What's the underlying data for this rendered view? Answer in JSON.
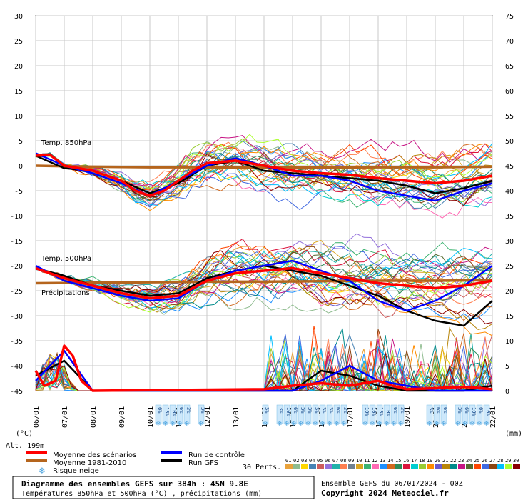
{
  "chart_data": {
    "type": "line",
    "title": "Diagramme des ensembles GEFS sur 384h : 45N 9.8E",
    "subtitle": "Températures 850hPa et 500hPa (°C) , précipitations (mm)",
    "x_ticks": [
      "06/01",
      "07/01",
      "08/01",
      "09/01",
      "10/01",
      "11/01",
      "12/01",
      "13/01",
      "14/01",
      "15/01",
      "16/01",
      "17/01",
      "18/01",
      "19/01",
      "20/01",
      "21/01",
      "22/01"
    ],
    "y_left_ticks": [
      30,
      25,
      20,
      15,
      10,
      5,
      0,
      -5,
      -10,
      -15,
      -20,
      -25,
      -30,
      -35,
      -40,
      -45
    ],
    "y_right_ticks": [
      75,
      70,
      65,
      60,
      55,
      50,
      45,
      40,
      35,
      30,
      25,
      20,
      15,
      10,
      5,
      0
    ],
    "ylim_left": [
      -45,
      30
    ],
    "ylim_right": [
      0,
      75
    ],
    "ylabel_left": "(°C)",
    "ylabel_right": "(mm)",
    "alt_label": "Alt. 199m",
    "annotations": [
      "Temp. 850hPa",
      "Temp. 500hPa",
      "Précipitations"
    ],
    "snow_labels": [
      {
        "day": 4.3,
        "label": "6%"
      },
      {
        "day": 4.55,
        "label": "13%"
      },
      {
        "day": 4.8,
        "label": "10%"
      },
      {
        "day": 5.05,
        "label": "6%"
      },
      {
        "day": 5.3,
        "label": "3%"
      },
      {
        "day": 5.8,
        "label": "3%"
      },
      {
        "day": 8.05,
        "label": "3%"
      },
      {
        "day": 8.55,
        "label": "3%"
      },
      {
        "day": 8.8,
        "label": "10%"
      },
      {
        "day": 9.05,
        "label": "6%"
      },
      {
        "day": 9.3,
        "label": "3%"
      },
      {
        "day": 9.55,
        "label": "3%"
      },
      {
        "day": 9.8,
        "label": "3%"
      },
      {
        "day": 10.05,
        "label": "3%"
      },
      {
        "day": 10.3,
        "label": "3%"
      },
      {
        "day": 10.55,
        "label": "6%"
      },
      {
        "day": 10.8,
        "label": "3%"
      },
      {
        "day": 11.55,
        "label": "10%"
      },
      {
        "day": 11.8,
        "label": "10%"
      },
      {
        "day": 12.05,
        "label": "13%"
      },
      {
        "day": 12.3,
        "label": "10%"
      },
      {
        "day": 12.55,
        "label": "6%"
      },
      {
        "day": 12.8,
        "label": "3%"
      },
      {
        "day": 13.8,
        "label": "3%"
      },
      {
        "day": 14.05,
        "label": "6%"
      },
      {
        "day": 14.3,
        "label": "6%"
      },
      {
        "day": 14.8,
        "label": "3%"
      },
      {
        "day": 15.05,
        "label": "6%"
      },
      {
        "day": 15.3,
        "label": "10%"
      },
      {
        "day": 15.55,
        "label": "6%"
      },
      {
        "day": 15.8,
        "label": "10%"
      }
    ],
    "series": [
      {
        "name": "Moyenne des scénarios",
        "color": "#ff0000",
        "t850": [
          [
            0,
            2
          ],
          [
            0.5,
            2.2
          ],
          [
            1,
            0
          ],
          [
            2,
            -1
          ],
          [
            3,
            -3
          ],
          [
            3.5,
            -5
          ],
          [
            4,
            -6
          ],
          [
            4.5,
            -5
          ],
          [
            5,
            -3
          ],
          [
            5.5,
            -1
          ],
          [
            6,
            0.5
          ],
          [
            7,
            1
          ],
          [
            8,
            0
          ],
          [
            9,
            -1
          ],
          [
            10,
            -1.5
          ],
          [
            11,
            -1.8
          ],
          [
            12,
            -2.5
          ],
          [
            13,
            -3
          ],
          [
            14,
            -3.5
          ],
          [
            15,
            -3
          ],
          [
            16,
            -2
          ]
        ],
        "t500": [
          [
            0,
            -20.5
          ],
          [
            1,
            -22.5
          ],
          [
            2,
            -24
          ],
          [
            3,
            -25.5
          ],
          [
            4,
            -26.5
          ],
          [
            5,
            -26
          ],
          [
            6,
            -23
          ],
          [
            7,
            -21.5
          ],
          [
            8,
            -21
          ],
          [
            9,
            -20.5
          ],
          [
            10,
            -21.5
          ],
          [
            11,
            -22.5
          ],
          [
            12,
            -23.5
          ],
          [
            13,
            -24
          ],
          [
            14,
            -24.5
          ],
          [
            15,
            -24
          ],
          [
            16,
            -23
          ]
        ],
        "precip": [
          [
            0,
            4
          ],
          [
            0.3,
            1
          ],
          [
            0.7,
            2
          ],
          [
            1,
            9
          ],
          [
            1.3,
            7
          ],
          [
            1.6,
            2
          ],
          [
            2,
            0
          ],
          [
            8,
            0.3
          ],
          [
            9,
            1
          ],
          [
            10,
            1.5
          ],
          [
            11,
            1
          ],
          [
            12,
            2
          ],
          [
            12.5,
            1
          ],
          [
            13,
            0.3
          ],
          [
            14,
            0.5
          ],
          [
            15,
            0.8
          ],
          [
            16,
            0.3
          ]
        ]
      },
      {
        "name": "Moyenne 1981-2010",
        "color": "#b5651d",
        "t850": [
          [
            0,
            0
          ],
          [
            2,
            -0.2
          ],
          [
            4,
            -0.3
          ],
          [
            6,
            -0.3
          ],
          [
            8,
            -0.4
          ],
          [
            10,
            -0.4
          ],
          [
            12,
            -0.3
          ],
          [
            14,
            -0.3
          ],
          [
            16,
            -0.2
          ]
        ],
        "t500": [
          [
            0,
            -23.5
          ],
          [
            2,
            -23.4
          ],
          [
            4,
            -23.3
          ],
          [
            6,
            -23.2
          ],
          [
            8,
            -23.2
          ],
          [
            10,
            -23.1
          ],
          [
            12,
            -23
          ],
          [
            14,
            -23
          ],
          [
            16,
            -22.9
          ]
        ],
        "precip": []
      },
      {
        "name": "Run de contrôle",
        "color": "#0000ff",
        "t850": [
          [
            0,
            2.5
          ],
          [
            1,
            0
          ],
          [
            2,
            -1.5
          ],
          [
            3,
            -3.5
          ],
          [
            4,
            -6
          ],
          [
            5,
            -3
          ],
          [
            6,
            0
          ],
          [
            7,
            1.5
          ],
          [
            8,
            0
          ],
          [
            9,
            -2
          ],
          [
            10,
            -2
          ],
          [
            11,
            -3
          ],
          [
            12,
            -5
          ],
          [
            13,
            -6
          ],
          [
            14,
            -7
          ],
          [
            15,
            -5
          ],
          [
            16,
            -3.5
          ]
        ],
        "t500": [
          [
            0,
            -20
          ],
          [
            1,
            -23
          ],
          [
            2,
            -24.5
          ],
          [
            3,
            -26
          ],
          [
            4,
            -27
          ],
          [
            5,
            -26.5
          ],
          [
            6,
            -23
          ],
          [
            7,
            -21
          ],
          [
            8,
            -20
          ],
          [
            9,
            -19
          ],
          [
            10,
            -21
          ],
          [
            11,
            -23
          ],
          [
            12,
            -27
          ],
          [
            13,
            -29
          ],
          [
            14,
            -27
          ],
          [
            15,
            -24
          ],
          [
            16,
            -20
          ]
        ],
        "precip": [
          [
            0,
            2
          ],
          [
            1,
            8
          ],
          [
            2,
            0
          ],
          [
            9,
            0
          ],
          [
            10,
            2
          ],
          [
            11,
            5
          ],
          [
            12,
            2
          ],
          [
            13,
            1
          ],
          [
            14,
            0
          ],
          [
            16,
            0
          ]
        ]
      },
      {
        "name": "Run GFS",
        "color": "#000000",
        "t850": [
          [
            0,
            2
          ],
          [
            1,
            -0.5
          ],
          [
            2,
            -1
          ],
          [
            3,
            -3
          ],
          [
            4,
            -5.5
          ],
          [
            5,
            -3.5
          ],
          [
            6,
            0
          ],
          [
            7,
            1
          ],
          [
            8,
            -1
          ],
          [
            9,
            -1.5
          ],
          [
            10,
            -2
          ],
          [
            11,
            -2.5
          ],
          [
            12,
            -3
          ],
          [
            13,
            -4
          ],
          [
            14,
            -5.5
          ],
          [
            15,
            -4.5
          ],
          [
            16,
            -3
          ]
        ],
        "t500": [
          [
            0,
            -20.5
          ],
          [
            1,
            -22
          ],
          [
            2,
            -24
          ],
          [
            3,
            -25
          ],
          [
            4,
            -26
          ],
          [
            5,
            -25.5
          ],
          [
            6,
            -22.5
          ],
          [
            7,
            -21
          ],
          [
            8,
            -20
          ],
          [
            9,
            -21
          ],
          [
            10,
            -22
          ],
          [
            11,
            -24
          ],
          [
            12,
            -26
          ],
          [
            13,
            -29
          ],
          [
            14,
            -31
          ],
          [
            15,
            -32
          ],
          [
            16,
            -27
          ]
        ],
        "precip": [
          [
            0,
            3
          ],
          [
            1,
            6
          ],
          [
            2,
            0
          ],
          [
            9,
            0
          ],
          [
            10,
            4
          ],
          [
            11,
            3
          ],
          [
            12,
            1
          ],
          [
            13,
            0
          ],
          [
            14,
            0
          ],
          [
            15,
            0
          ],
          [
            16,
            1
          ]
        ]
      }
    ],
    "perturbation_colors": [
      "#e9a23b",
      "#8fbc8f",
      "#ffd700",
      "#4682b4",
      "#cd5c5c",
      "#9370db",
      "#20b2aa",
      "#ff7f50",
      "#708090",
      "#daa520",
      "#3cb371",
      "#ff69b4",
      "#1e90ff",
      "#d2691e",
      "#2e8b57",
      "#dc143c",
      "#00ced1",
      "#9acd32",
      "#ff8c00",
      "#6a5acd",
      "#b8860b",
      "#008b8b",
      "#c71585",
      "#556b2f",
      "#ff4500",
      "#4169e1",
      "#8b4513",
      "#00bfff",
      "#adff2f",
      "#8b0000"
    ]
  },
  "legend": {
    "items": [
      {
        "label": "Moyenne des scénarios",
        "color": "#ff0000"
      },
      {
        "label": "Moyenne 1981-2010",
        "color": "#b5651d"
      },
      {
        "label": "Risque neige",
        "color": "#4aa3df"
      },
      {
        "label": "Run de contrôle",
        "color": "#0000ff"
      },
      {
        "label": "Run GFS",
        "color": "#000000"
      }
    ],
    "perts_label": "30 Perts.",
    "perts_numbers": [
      "01",
      "02",
      "03",
      "04",
      "05",
      "06",
      "07",
      "08",
      "09",
      "10",
      "11",
      "12",
      "13",
      "14",
      "15",
      "16",
      "17",
      "18",
      "19",
      "20",
      "21",
      "22",
      "23",
      "24",
      "25",
      "26",
      "27",
      "28",
      "29",
      "30"
    ]
  },
  "footer": {
    "title": "Diagramme des ensembles GEFS sur 384h : 45N 9.8E",
    "subtitle": "Températures 850hPa et 500hPa (°C) , précipitations (mm)",
    "ensemble": "Ensemble GEFS du 06/01/2024 - 00Z",
    "copyright": "Copyright 2024 Meteociel.fr"
  }
}
